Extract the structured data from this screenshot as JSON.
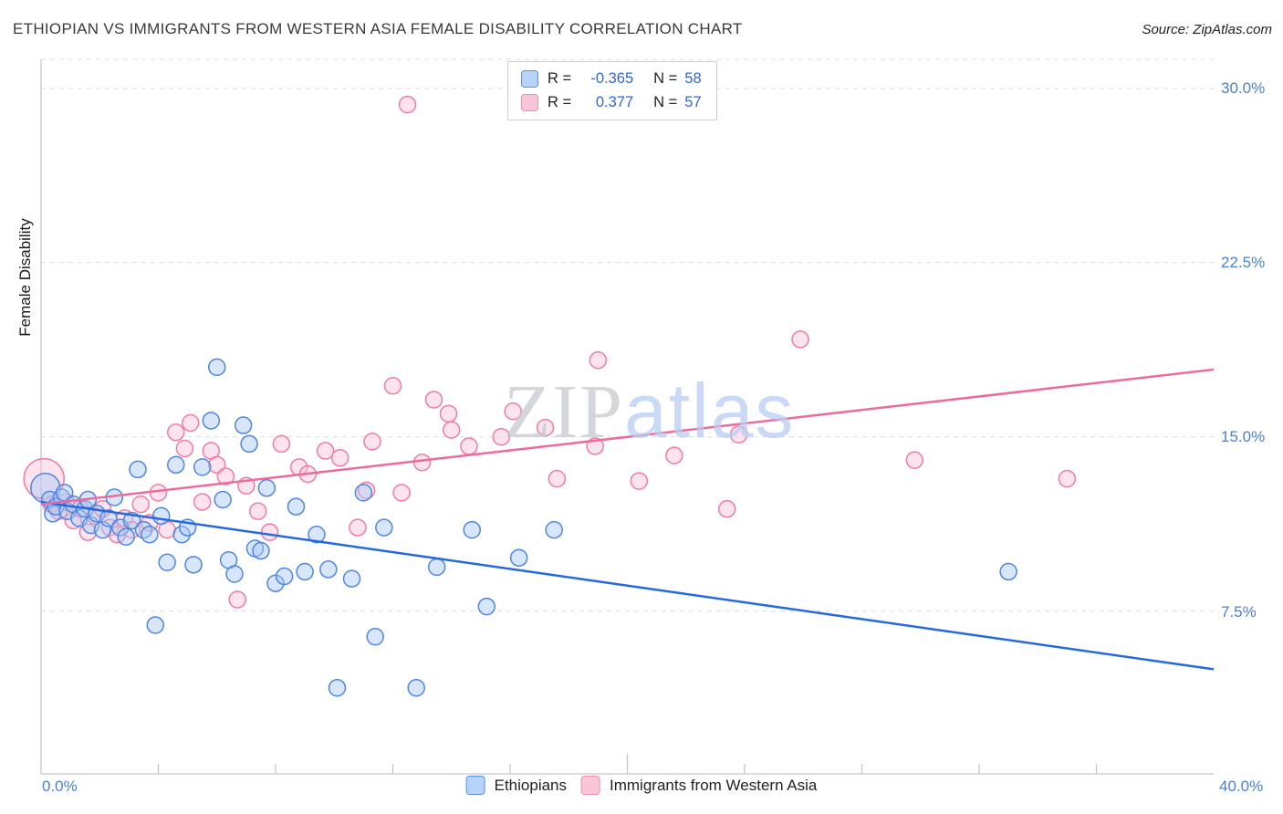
{
  "header": {
    "title": "ETHIOPIAN VS IMMIGRANTS FROM WESTERN ASIA FEMALE DISABILITY CORRELATION CHART",
    "source": "Source: ZipAtlas.com"
  },
  "watermark": {
    "part1": "ZIP",
    "part2": "atlas"
  },
  "axes": {
    "y_label": "Female Disability",
    "y_ticks": {
      "0": "30.0%",
      "1": "22.5%",
      "2": "15.0%",
      "3": "7.5%"
    },
    "x_min_label": "0.0%",
    "x_max_label": "40.0%"
  },
  "legend_box": {
    "rows": [
      {
        "r_label": "R =",
        "r_value": "-0.365",
        "n_label": "N =",
        "n_value": "58"
      },
      {
        "r_label": "R =",
        "r_value": "0.377",
        "n_label": "N =",
        "n_value": "57"
      }
    ]
  },
  "bottom_legend": {
    "items": [
      {
        "label": "Ethiopians"
      },
      {
        "label": "Immigrants from Western Asia"
      }
    ]
  },
  "colors": {
    "blue_stroke": "#4f86e0",
    "blue_fill": "#a6c8f7",
    "blue_line": "#2469de",
    "pink_stroke": "#f17ba4",
    "pink_fill": "#fac2d6",
    "pink_line": "#ec6a9c",
    "tick_label": "#4a7fd4",
    "value_text": "#3366cc"
  },
  "chart_data": {
    "type": "scatter",
    "title": "ETHIOPIAN VS IMMIGRANTS FROM WESTERN ASIA FEMALE DISABILITY CORRELATION CHART",
    "xlabel": "",
    "ylabel": "Female Disability",
    "xlim": [
      0,
      40
    ],
    "ylim": [
      0.5,
      31.25
    ],
    "x_units": "percent",
    "y_units": "percent",
    "y_gridlines": [
      7.5,
      15,
      22.5,
      30,
      31.25
    ],
    "x_ticks": [
      4,
      8,
      12,
      16,
      20,
      24,
      28,
      32,
      36
    ],
    "legend_position": "bottom",
    "series": [
      {
        "name": "Immigrants from Western Asia",
        "R": 0.377,
        "N": 57,
        "points": [
          [
            0.1,
            13.2,
            22
          ],
          [
            0.35,
            12.1
          ],
          [
            0.6,
            11.8
          ],
          [
            0.85,
            12.2
          ],
          [
            1.1,
            11.4
          ],
          [
            1.35,
            11.9
          ],
          [
            1.6,
            10.9
          ],
          [
            1.85,
            11.6
          ],
          [
            2.1,
            11.9
          ],
          [
            2.35,
            11.1
          ],
          [
            2.6,
            10.8
          ],
          [
            2.85,
            11.5
          ],
          [
            3.1,
            11.0
          ],
          [
            3.4,
            12.1
          ],
          [
            3.7,
            11.3
          ],
          [
            4.0,
            12.6
          ],
          [
            4.3,
            11.0
          ],
          [
            4.6,
            15.2
          ],
          [
            4.9,
            14.5
          ],
          [
            5.1,
            15.6
          ],
          [
            5.5,
            12.2
          ],
          [
            5.8,
            14.4
          ],
          [
            6.0,
            13.8
          ],
          [
            6.3,
            13.3
          ],
          [
            6.7,
            8.0
          ],
          [
            7.0,
            12.9
          ],
          [
            7.4,
            11.8
          ],
          [
            7.8,
            10.9
          ],
          [
            8.2,
            14.7
          ],
          [
            8.8,
            13.7
          ],
          [
            9.1,
            13.4
          ],
          [
            9.7,
            14.4
          ],
          [
            10.2,
            14.1
          ],
          [
            10.8,
            11.1
          ],
          [
            11.1,
            12.7
          ],
          [
            11.3,
            14.8
          ],
          [
            12.0,
            17.2
          ],
          [
            12.3,
            12.6
          ],
          [
            12.5,
            29.3
          ],
          [
            13.0,
            13.9
          ],
          [
            13.4,
            16.6
          ],
          [
            13.9,
            16.0
          ],
          [
            14.0,
            15.3
          ],
          [
            14.6,
            14.6
          ],
          [
            15.7,
            15.0
          ],
          [
            16.1,
            16.1
          ],
          [
            17.2,
            15.4
          ],
          [
            17.6,
            13.2
          ],
          [
            18.9,
            14.6
          ],
          [
            19.0,
            18.3
          ],
          [
            20.4,
            13.1
          ],
          [
            21.6,
            14.2
          ],
          [
            23.4,
            11.9
          ],
          [
            23.8,
            15.1
          ],
          [
            25.9,
            19.2
          ],
          [
            29.8,
            14.0
          ],
          [
            35.0,
            13.2
          ]
        ],
        "trend": {
          "x1": 0,
          "y1": 12.1,
          "x2": 40,
          "y2": 17.9
        }
      },
      {
        "name": "Ethiopians",
        "R": -0.365,
        "N": 58,
        "points": [
          [
            0.15,
            12.8,
            16
          ],
          [
            0.3,
            12.3
          ],
          [
            0.4,
            11.7
          ],
          [
            0.5,
            12.0
          ],
          [
            0.7,
            12.4
          ],
          [
            0.8,
            12.6
          ],
          [
            0.9,
            11.8
          ],
          [
            1.1,
            12.1
          ],
          [
            1.3,
            11.5
          ],
          [
            1.5,
            11.9
          ],
          [
            1.6,
            12.3
          ],
          [
            1.7,
            11.2
          ],
          [
            1.9,
            11.7
          ],
          [
            2.1,
            11.0
          ],
          [
            2.3,
            11.5
          ],
          [
            2.5,
            12.4
          ],
          [
            2.7,
            11.1
          ],
          [
            2.9,
            10.7
          ],
          [
            3.1,
            11.4
          ],
          [
            3.3,
            13.6
          ],
          [
            3.5,
            11.0
          ],
          [
            3.7,
            10.8
          ],
          [
            3.9,
            6.9
          ],
          [
            4.1,
            11.6
          ],
          [
            4.3,
            9.6
          ],
          [
            4.6,
            13.8
          ],
          [
            4.8,
            10.8
          ],
          [
            5.0,
            11.1
          ],
          [
            5.2,
            9.5
          ],
          [
            5.5,
            13.7
          ],
          [
            5.8,
            15.7
          ],
          [
            6.0,
            18.0
          ],
          [
            6.2,
            12.3
          ],
          [
            6.4,
            9.7
          ],
          [
            6.6,
            9.1
          ],
          [
            6.9,
            15.5
          ],
          [
            7.1,
            14.7
          ],
          [
            7.3,
            10.2
          ],
          [
            7.5,
            10.1
          ],
          [
            7.7,
            12.8
          ],
          [
            8.0,
            8.7
          ],
          [
            8.3,
            9.0
          ],
          [
            8.7,
            12.0
          ],
          [
            9.0,
            9.2
          ],
          [
            9.4,
            10.8
          ],
          [
            9.8,
            9.3
          ],
          [
            10.1,
            4.2
          ],
          [
            10.6,
            8.9
          ],
          [
            11.0,
            12.6
          ],
          [
            11.4,
            6.4
          ],
          [
            11.7,
            11.1
          ],
          [
            12.8,
            4.2
          ],
          [
            13.5,
            9.4
          ],
          [
            14.7,
            11.0
          ],
          [
            15.2,
            7.7
          ],
          [
            16.3,
            9.8
          ],
          [
            17.5,
            11.0
          ],
          [
            33.0,
            9.2
          ]
        ],
        "trend": {
          "x1": 0,
          "y1": 12.2,
          "x2": 40,
          "y2": 5.0
        }
      }
    ]
  }
}
